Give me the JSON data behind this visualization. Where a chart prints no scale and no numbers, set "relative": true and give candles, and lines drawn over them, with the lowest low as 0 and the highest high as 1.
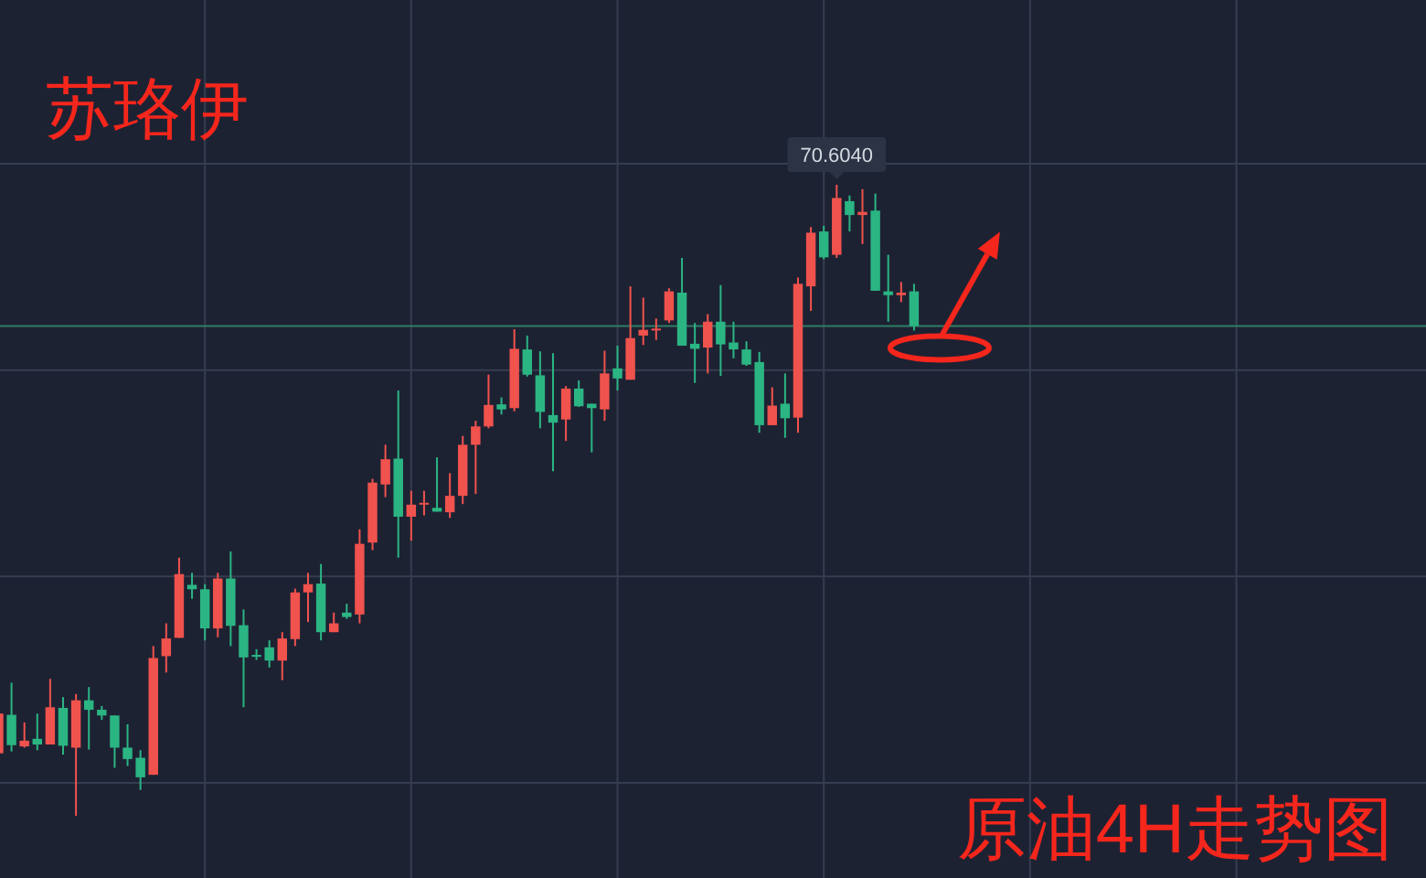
{
  "chart_data": {
    "type": "candlestick",
    "title": "原油4H走势图",
    "annotations": [
      "苏珞伊",
      {
        "text": "70.6040",
        "y": 1
      }
    ],
    "relative": true,
    "grid": true,
    "ref_lines": [
      {
        "axis": "y",
        "value": 0.776,
        "color": "#2e7d63"
      }
    ],
    "categories": [
      null,
      null,
      null,
      null,
      null,
      null,
      null,
      null,
      null,
      null,
      null,
      null,
      null,
      null,
      null,
      null,
      null,
      null,
      null,
      null,
      null,
      null,
      null,
      null,
      null,
      null,
      null,
      null,
      null,
      null,
      null,
      null,
      null,
      null,
      null,
      null,
      null,
      null,
      null,
      null,
      null,
      null,
      null,
      null,
      null,
      null,
      null,
      null,
      null,
      null,
      null,
      null,
      null,
      null,
      null,
      null,
      null,
      null,
      null,
      null,
      null,
      null,
      null,
      null,
      null,
      null,
      null,
      null,
      null,
      null,
      null,
      null
    ],
    "ohlc": [
      [
        0.099,
        0.162,
        0.099,
        0.162
      ],
      [
        0.16,
        0.211,
        0.102,
        0.112
      ],
      [
        0.11,
        0.148,
        0.108,
        0.119
      ],
      [
        0.122,
        0.162,
        0.104,
        0.113
      ],
      [
        0.113,
        0.217,
        0.113,
        0.172
      ],
      [
        0.171,
        0.188,
        0.097,
        0.111
      ],
      [
        0.108,
        0.193,
        0.0,
        0.183
      ],
      [
        0.183,
        0.204,
        0.105,
        0.168
      ],
      [
        0.168,
        0.174,
        0.152,
        0.159
      ],
      [
        0.159,
        0.159,
        0.076,
        0.108
      ],
      [
        0.108,
        0.145,
        0.079,
        0.09
      ],
      [
        0.092,
        0.104,
        0.041,
        0.061
      ],
      [
        0.065,
        0.269,
        0.065,
        0.25
      ],
      [
        0.253,
        0.305,
        0.227,
        0.281
      ],
      [
        0.282,
        0.409,
        0.282,
        0.383
      ],
      [
        0.366,
        0.385,
        0.344,
        0.359
      ],
      [
        0.359,
        0.367,
        0.278,
        0.297
      ],
      [
        0.297,
        0.385,
        0.283,
        0.376
      ],
      [
        0.376,
        0.419,
        0.269,
        0.301
      ],
      [
        0.302,
        0.327,
        0.172,
        0.251
      ],
      [
        0.255,
        0.264,
        0.247,
        0.252
      ],
      [
        0.267,
        0.278,
        0.235,
        0.246
      ],
      [
        0.246,
        0.291,
        0.215,
        0.281
      ],
      [
        0.28,
        0.36,
        0.269,
        0.354
      ],
      [
        0.354,
        0.385,
        0.307,
        0.367
      ],
      [
        0.368,
        0.399,
        0.278,
        0.291
      ],
      [
        0.291,
        0.322,
        0.291,
        0.305
      ],
      [
        0.322,
        0.336,
        0.312,
        0.315
      ],
      [
        0.319,
        0.454,
        0.305,
        0.431
      ],
      [
        0.433,
        0.534,
        0.421,
        0.528
      ],
      [
        0.525,
        0.588,
        0.505,
        0.565
      ],
      [
        0.566,
        0.674,
        0.409,
        0.474
      ],
      [
        0.474,
        0.515,
        0.436,
        0.493
      ],
      [
        0.494,
        0.515,
        0.476,
        0.496
      ],
      [
        0.488,
        0.568,
        0.482,
        0.482
      ],
      [
        0.481,
        0.543,
        0.472,
        0.507
      ],
      [
        0.507,
        0.602,
        0.494,
        0.588
      ],
      [
        0.588,
        0.626,
        0.51,
        0.617
      ],
      [
        0.617,
        0.699,
        0.614,
        0.651
      ],
      [
        0.652,
        0.663,
        0.636,
        0.644
      ],
      [
        0.646,
        0.771,
        0.641,
        0.74
      ],
      [
        0.739,
        0.761,
        0.696,
        0.699
      ],
      [
        0.698,
        0.736,
        0.614,
        0.64
      ],
      [
        0.635,
        0.733,
        0.546,
        0.623
      ],
      [
        0.628,
        0.681,
        0.594,
        0.677
      ],
      [
        0.677,
        0.69,
        0.648,
        0.649
      ],
      [
        0.653,
        0.653,
        0.576,
        0.646
      ],
      [
        0.644,
        0.737,
        0.626,
        0.701
      ],
      [
        0.709,
        0.745,
        0.674,
        0.693
      ],
      [
        0.691,
        0.839,
        0.691,
        0.757
      ],
      [
        0.761,
        0.821,
        0.746,
        0.77
      ],
      [
        0.77,
        0.788,
        0.754,
        0.772
      ],
      [
        0.785,
        0.836,
        0.781,
        0.831
      ],
      [
        0.829,
        0.884,
        0.745,
        0.745
      ],
      [
        0.748,
        0.781,
        0.686,
        0.74
      ],
      [
        0.742,
        0.795,
        0.701,
        0.783
      ],
      [
        0.783,
        0.841,
        0.697,
        0.747
      ],
      [
        0.75,
        0.783,
        0.725,
        0.739
      ],
      [
        0.739,
        0.752,
        0.713,
        0.715
      ],
      [
        0.719,
        0.735,
        0.607,
        0.619
      ],
      [
        0.619,
        0.679,
        0.619,
        0.65
      ],
      [
        0.653,
        0.701,
        0.599,
        0.63
      ],
      [
        0.631,
        0.853,
        0.607,
        0.843
      ],
      [
        0.839,
        0.933,
        0.8,
        0.924
      ],
      [
        0.926,
        0.935,
        0.882,
        0.885
      ],
      [
        0.889,
        1.0,
        0.884,
        0.979
      ],
      [
        0.974,
        0.983,
        0.926,
        0.952
      ],
      [
        0.952,
        0.993,
        0.906,
        0.957
      ],
      [
        0.959,
        0.986,
        0.832,
        0.832
      ],
      [
        0.831,
        0.889,
        0.783,
        0.825
      ],
      [
        0.825,
        0.846,
        0.814,
        0.829
      ],
      [
        0.831,
        0.843,
        0.769,
        0.776
      ]
    ],
    "colors": [
      "#f0524d",
      "#2bb583",
      "#f0524d",
      "#2bb583",
      "#f0524d",
      "#2bb583",
      "#f0524d",
      "#2bb583",
      "#2bb583",
      "#2bb583",
      "#2bb583",
      "#2bb583",
      "#f0524d",
      "#f0524d",
      "#f0524d",
      "#2bb583",
      "#2bb583",
      "#f0524d",
      "#2bb583",
      "#2bb583",
      "#2bb583",
      "#2bb583",
      "#f0524d",
      "#f0524d",
      "#f0524d",
      "#2bb583",
      "#f0524d",
      "#2bb583",
      "#f0524d",
      "#f0524d",
      "#f0524d",
      "#2bb583",
      "#f0524d",
      "#f0524d",
      "#2bb583",
      "#f0524d",
      "#f0524d",
      "#f0524d",
      "#f0524d",
      "#2bb583",
      "#f0524d",
      "#2bb583",
      "#2bb583",
      "#2bb583",
      "#f0524d",
      "#2bb583",
      "#2bb583",
      "#f0524d",
      "#2bb583",
      "#f0524d",
      "#f0524d",
      "#f0524d",
      "#f0524d",
      "#2bb583",
      "#2bb583",
      "#f0524d",
      "#2bb583",
      "#2bb583",
      "#2bb583",
      "#2bb583",
      "#f0524d",
      "#2bb583",
      "#f0524d",
      "#f0524d",
      "#2bb583",
      "#f0524d",
      "#2bb583",
      "#f0524d",
      "#2bb583",
      "#2bb583",
      "#f0524d",
      "#2bb583"
    ]
  }
}
